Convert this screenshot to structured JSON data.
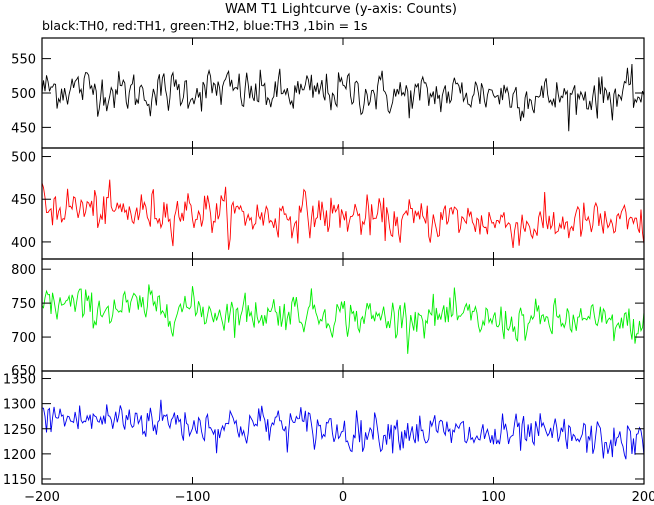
{
  "chart_data": {
    "type": "line",
    "title": "WAM T1 Lightcurve (y-axis: Counts)",
    "subtitle": "black:TH0, red:TH1, green:TH2, blue:TH3 ,1bin = 1s",
    "x_range": [
      -200,
      200
    ],
    "x_ticks": [
      -200,
      -100,
      0,
      100,
      200
    ],
    "panels": [
      {
        "series": "TH0",
        "color": "#000000",
        "ylim": [
          420,
          580
        ],
        "yticks": [
          450,
          500,
          550
        ],
        "start_level": 505,
        "end_level": 495,
        "noise_sigma": 20,
        "points_sample": [
          [
            -200,
            498
          ],
          [
            -150,
            510
          ],
          [
            -100,
            505
          ],
          [
            -50,
            500
          ],
          [
            0,
            497
          ],
          [
            50,
            503
          ],
          [
            100,
            495
          ],
          [
            150,
            493
          ],
          [
            200,
            492
          ]
        ]
      },
      {
        "series": "TH1",
        "color": "#ff0000",
        "ylim": [
          380,
          510
        ],
        "yticks": [
          400,
          450,
          500
        ],
        "start_level": 440,
        "end_level": 418,
        "noise_sigma": 16,
        "points_sample": [
          [
            -200,
            442
          ],
          [
            -150,
            445
          ],
          [
            -100,
            440
          ],
          [
            -50,
            436
          ],
          [
            0,
            430
          ],
          [
            50,
            428
          ],
          [
            100,
            422
          ],
          [
            150,
            420
          ],
          [
            200,
            418
          ]
        ]
      },
      {
        "series": "TH2",
        "color": "#00ee00",
        "ylim": [
          650,
          815
        ],
        "yticks": [
          650,
          700,
          750,
          800
        ],
        "start_level": 748,
        "end_level": 718,
        "noise_sigma": 18,
        "points_sample": [
          [
            -200,
            750
          ],
          [
            -150,
            752
          ],
          [
            -100,
            745
          ],
          [
            -50,
            740
          ],
          [
            0,
            735
          ],
          [
            50,
            730
          ],
          [
            100,
            724
          ],
          [
            150,
            720
          ],
          [
            200,
            716
          ]
        ]
      },
      {
        "series": "TH3",
        "color": "#0000ee",
        "ylim": [
          1140,
          1365
        ],
        "yticks": [
          1150,
          1200,
          1250,
          1300,
          1350
        ],
        "start_level": 1275,
        "end_level": 1225,
        "noise_sigma": 25,
        "points_sample": [
          [
            -200,
            1278
          ],
          [
            -150,
            1270
          ],
          [
            -100,
            1262
          ],
          [
            -50,
            1258
          ],
          [
            0,
            1252
          ],
          [
            50,
            1245
          ],
          [
            100,
            1240
          ],
          [
            150,
            1232
          ],
          [
            200,
            1225
          ]
        ]
      }
    ],
    "grid": false
  }
}
